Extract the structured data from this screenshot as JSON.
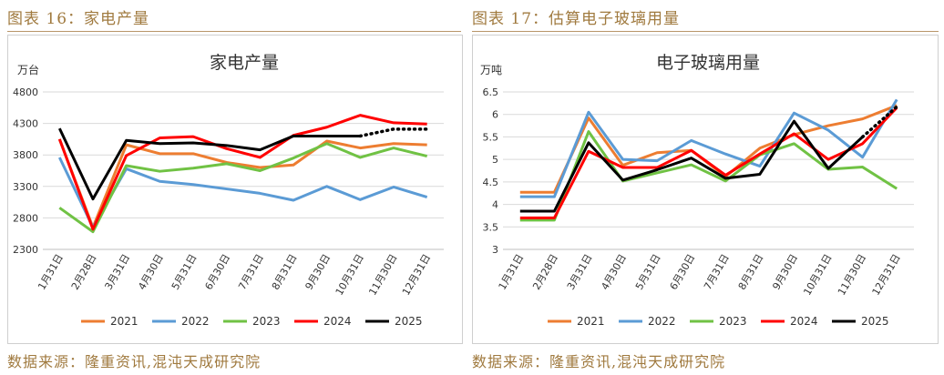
{
  "figures": [
    {
      "caption": "图表 16：家电产量",
      "source": "数据来源：隆重资讯,混沌天成研究院"
    },
    {
      "caption": "图表 17：估算电子玻璃用量",
      "source": "数据来源：隆重资讯,混沌天成研究院"
    }
  ],
  "chart_data": [
    {
      "type": "line",
      "title": "家电产量",
      "ylabel": "万台",
      "xlabel": "",
      "categories": [
        "1月31日",
        "2月28日",
        "3月31日",
        "4月30日",
        "5月31日",
        "6月30日",
        "7月31日",
        "8月31日",
        "9月30日",
        "10月31日",
        "11月30日",
        "12月31日"
      ],
      "yticks": [
        "4800",
        "4300",
        "3800",
        "3300",
        "2800",
        "2300"
      ],
      "ylim": [
        2300,
        4800
      ],
      "grid": true,
      "legend_position": "bottom",
      "series": [
        {
          "name": "2021",
          "color": "#ed7d31",
          "values": [
            4050,
            2650,
            3960,
            3820,
            3820,
            3680,
            3600,
            3640,
            4020,
            3910,
            3980,
            3960
          ]
        },
        {
          "name": "2022",
          "color": "#5b9bd5",
          "values": [
            3760,
            2650,
            3580,
            3380,
            3330,
            3260,
            3190,
            3080,
            3300,
            3090,
            3290,
            3130
          ]
        },
        {
          "name": "2023",
          "color": "#70c244",
          "values": [
            2960,
            2580,
            3630,
            3540,
            3590,
            3660,
            3550,
            3750,
            3980,
            3760,
            3910,
            3780
          ]
        },
        {
          "name": "2024",
          "color": "#ff0000",
          "values": [
            4050,
            2620,
            3790,
            4070,
            4090,
            3900,
            3760,
            4110,
            4240,
            4430,
            4310,
            4290
          ]
        },
        {
          "name": "2025",
          "color": "#000000",
          "values": [
            4220,
            3100,
            4030,
            3980,
            3990,
            3950,
            3880,
            4100,
            4100,
            4100,
            4210,
            4210
          ],
          "dotted_from_index": 9
        }
      ]
    },
    {
      "type": "line",
      "title": "电子玻璃用量",
      "ylabel": "万吨",
      "xlabel": "",
      "categories": [
        "1月31日",
        "2月28日",
        "3月31日",
        "4月30日",
        "5月31日",
        "6月30日",
        "7月31日",
        "8月31日",
        "9月30日",
        "10月31日",
        "11月30日",
        "12月31日"
      ],
      "yticks": [
        "6.5",
        "6",
        "5.5",
        "5",
        "4.5",
        "4",
        "3.5",
        "3"
      ],
      "ylim": [
        3,
        6.5
      ],
      "grid": true,
      "legend_position": "bottom",
      "series": [
        {
          "name": "2021",
          "color": "#ed7d31",
          "values": [
            4.27,
            4.27,
            5.92,
            4.87,
            5.15,
            5.2,
            4.62,
            5.25,
            5.55,
            5.75,
            5.9,
            6.2
          ]
        },
        {
          "name": "2022",
          "color": "#5b9bd5",
          "values": [
            4.17,
            4.17,
            6.05,
            5.0,
            4.97,
            5.42,
            5.12,
            4.85,
            6.03,
            5.65,
            5.05,
            6.33
          ]
        },
        {
          "name": "2023",
          "color": "#70c244",
          "values": [
            3.65,
            3.65,
            5.62,
            4.52,
            4.7,
            4.88,
            4.52,
            5.1,
            5.35,
            4.78,
            4.83,
            4.35
          ]
        },
        {
          "name": "2024",
          "color": "#ff0000",
          "values": [
            3.7,
            3.7,
            5.18,
            4.82,
            4.82,
            5.2,
            4.65,
            5.12,
            5.57,
            5.0,
            5.35,
            6.15
          ]
        },
        {
          "name": "2025",
          "color": "#000000",
          "values": [
            3.85,
            3.85,
            5.37,
            4.54,
            4.77,
            5.03,
            4.58,
            4.67,
            5.85,
            4.8,
            5.5,
            6.17
          ],
          "dotted_from_index": 10
        }
      ]
    }
  ]
}
